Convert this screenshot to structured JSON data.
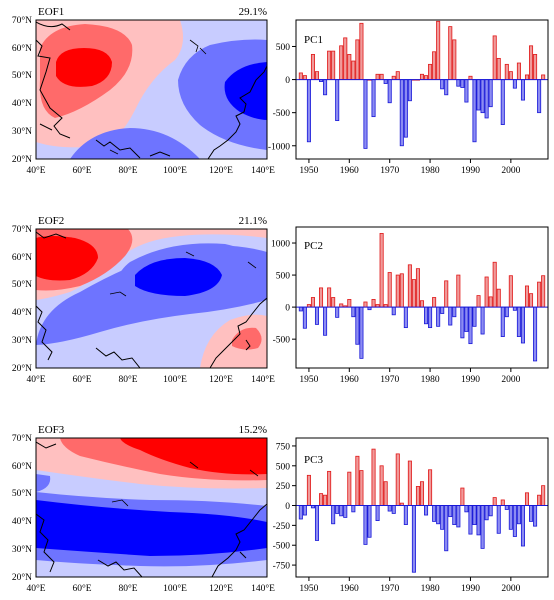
{
  "colors": {
    "red_strong": "#ff0000",
    "red_mid": "#ff6a6a",
    "red_light": "#ffc0c0",
    "blue_light": "#c8ccff",
    "blue_mid": "#6e74ff",
    "blue_strong": "#0000ff",
    "bar_pos_fill": "#f09a9a",
    "bar_pos_stroke": "#e01818",
    "bar_neg_fill": "#8c8cf2",
    "bar_neg_stroke": "#1818d8",
    "coast": "#000000"
  },
  "map_axes": {
    "lon_ticks": [
      "40°E",
      "60°E",
      "80°E",
      "100°E",
      "120°E",
      "140°E"
    ],
    "lat_ticks": [
      "20°N",
      "30°N",
      "40°N",
      "50°N",
      "60°N",
      "70°N"
    ],
    "lon_range": [
      40,
      140
    ],
    "lat_range": [
      20,
      70
    ]
  },
  "chart_data": [
    {
      "type": "heatmap",
      "title": "EOF1",
      "percent": "29.1%",
      "xlim": [
        40,
        140
      ],
      "ylim": [
        20,
        70
      ],
      "pattern": "red maximum near 55–60°E, 50–55°N; blue maximum near 130°E, 42°N; blue band near 70–100°E, 20–25°N"
    },
    {
      "type": "bar",
      "title": "PC1",
      "x": [
        1948,
        1949,
        1950,
        1951,
        1952,
        1953,
        1954,
        1955,
        1956,
        1957,
        1958,
        1959,
        1960,
        1961,
        1962,
        1963,
        1964,
        1965,
        1966,
        1967,
        1968,
        1969,
        1970,
        1971,
        1972,
        1973,
        1974,
        1975,
        1976,
        1977,
        1978,
        1979,
        1980,
        1981,
        1982,
        1983,
        1984,
        1985,
        1986,
        1987,
        1988,
        1989,
        1990,
        1991,
        1992,
        1993,
        1994,
        1995,
        1996,
        1997,
        1998,
        1999,
        2000,
        2001,
        2002,
        2003,
        2004,
        2005,
        2006,
        2007,
        2008
      ],
      "values": [
        100,
        60,
        -940,
        380,
        120,
        -30,
        -230,
        430,
        430,
        -620,
        510,
        630,
        380,
        280,
        600,
        850,
        -1040,
        0,
        -560,
        80,
        80,
        -60,
        -350,
        50,
        120,
        -1000,
        -870,
        -320,
        0,
        0,
        80,
        60,
        230,
        420,
        880,
        -140,
        -230,
        800,
        600,
        -100,
        -120,
        -340,
        50,
        -940,
        -460,
        -500,
        -580,
        -410,
        660,
        320,
        -680,
        230,
        120,
        -130,
        250,
        -310,
        70,
        510,
        380,
        -500,
        70
      ],
      "ylim": [
        -1200,
        900
      ],
      "yticks": [
        -1000,
        -500,
        0,
        500
      ],
      "xticks": [
        1950,
        1960,
        1970,
        1980,
        1990,
        2000
      ]
    },
    {
      "type": "heatmap",
      "title": "EOF2",
      "percent": "21.1%",
      "xlim": [
        40,
        140
      ],
      "ylim": [
        20,
        70
      ],
      "pattern": "red maximum near 45–60°E, 60–70°N; blue maximum near 100°E, 50–55°N; red center near 130°E, 30°N"
    },
    {
      "type": "bar",
      "title": "PC2",
      "x": [
        1948,
        1949,
        1950,
        1951,
        1952,
        1953,
        1954,
        1955,
        1956,
        1957,
        1958,
        1959,
        1960,
        1961,
        1962,
        1963,
        1964,
        1965,
        1966,
        1967,
        1968,
        1969,
        1970,
        1971,
        1972,
        1973,
        1974,
        1975,
        1976,
        1977,
        1978,
        1979,
        1980,
        1981,
        1982,
        1983,
        1984,
        1985,
        1986,
        1987,
        1988,
        1989,
        1990,
        1991,
        1992,
        1993,
        1994,
        1995,
        1996,
        1997,
        1998,
        1999,
        2000,
        2001,
        2002,
        2003,
        2004,
        2005,
        2006,
        2007,
        2008
      ],
      "values": [
        -60,
        -330,
        40,
        150,
        -270,
        300,
        -440,
        300,
        150,
        -160,
        50,
        20,
        120,
        -150,
        -580,
        -800,
        80,
        -40,
        120,
        40,
        1150,
        40,
        540,
        -120,
        500,
        520,
        -320,
        660,
        430,
        600,
        100,
        -260,
        -320,
        150,
        -300,
        -100,
        410,
        -280,
        -150,
        500,
        -480,
        -380,
        -570,
        -300,
        180,
        -420,
        470,
        160,
        700,
        280,
        -460,
        -150,
        490,
        -50,
        -460,
        -560,
        330,
        210,
        -840,
        390,
        490
      ],
      "ylim": [
        -950,
        1250
      ],
      "yticks": [
        -500,
        0,
        500,
        1000
      ],
      "xticks": [
        1950,
        1960,
        1970,
        1980,
        1990,
        2000
      ]
    },
    {
      "type": "heatmap",
      "title": "EOF3",
      "percent": "15.2%",
      "xlim": [
        40,
        140
      ],
      "ylim": [
        20,
        70
      ],
      "pattern": "red band along 60–70°N, maximum near 120–140°E, 65°N; blue band along 25–45°N, maximum near 60–100°E, 30–40°N"
    },
    {
      "type": "bar",
      "title": "PC3",
      "x": [
        1948,
        1949,
        1950,
        1951,
        1952,
        1953,
        1954,
        1955,
        1956,
        1957,
        1958,
        1959,
        1960,
        1961,
        1962,
        1963,
        1964,
        1965,
        1966,
        1967,
        1968,
        1969,
        1970,
        1971,
        1972,
        1973,
        1974,
        1975,
        1976,
        1977,
        1978,
        1979,
        1980,
        1981,
        1982,
        1983,
        1984,
        1985,
        1986,
        1987,
        1988,
        1989,
        1990,
        1991,
        1992,
        1993,
        1994,
        1995,
        1996,
        1997,
        1998,
        1999,
        2000,
        2001,
        2002,
        2003,
        2004,
        2005,
        2006,
        2007,
        2008
      ],
      "values": [
        -170,
        -120,
        380,
        -30,
        -440,
        150,
        130,
        430,
        -230,
        -100,
        -130,
        -150,
        420,
        -80,
        620,
        440,
        -490,
        -400,
        710,
        -190,
        500,
        300,
        -70,
        -100,
        650,
        30,
        -240,
        560,
        -840,
        240,
        300,
        -120,
        450,
        -200,
        -230,
        -300,
        -570,
        -140,
        -240,
        -270,
        220,
        -80,
        -360,
        -240,
        -370,
        -540,
        -180,
        -130,
        100,
        -350,
        70,
        -50,
        -300,
        -390,
        -230,
        -510,
        160,
        -200,
        -260,
        130,
        250
      ],
      "ylim": [
        -900,
        850
      ],
      "yticks": [
        -750,
        -500,
        -250,
        0,
        250,
        500,
        750
      ],
      "xticks": [
        1950,
        1960,
        1970,
        1980,
        1990,
        2000
      ]
    }
  ]
}
